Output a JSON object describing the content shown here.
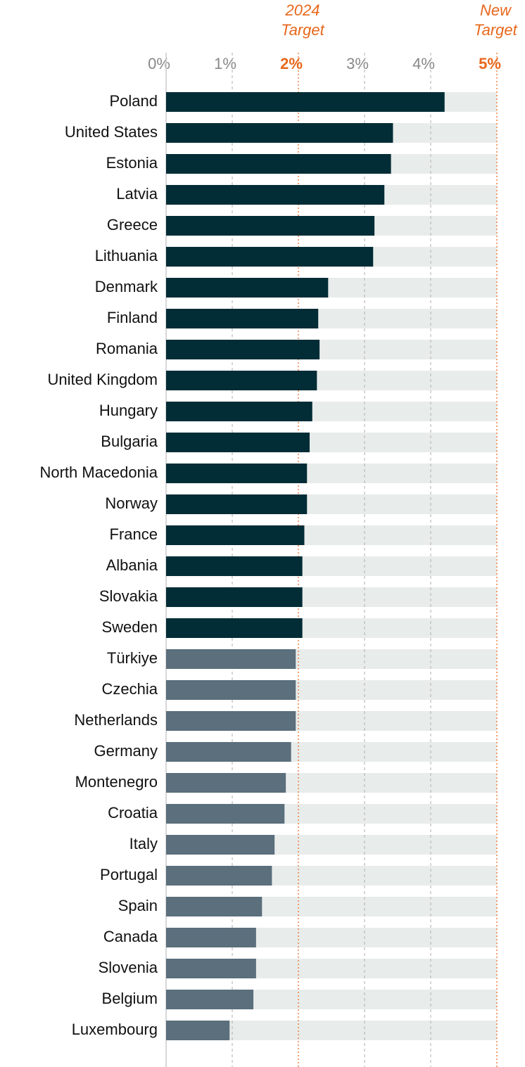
{
  "chart_data": {
    "type": "bar",
    "orientation": "horizontal",
    "categories": [
      "Poland",
      "United States",
      "Estonia",
      "Latvia",
      "Greece",
      "Lithuania",
      "Denmark",
      "Finland",
      "Romania",
      "United Kingdom",
      "Hungary",
      "Bulgaria",
      "North Macedonia",
      "Norway",
      "France",
      "Albania",
      "Slovakia",
      "Sweden",
      "Türkiye",
      "Czechia",
      "Netherlands",
      "Germany",
      "Montenegro",
      "Croatia",
      "Italy",
      "Portugal",
      "Spain",
      "Canada",
      "Slovenia",
      "Belgium",
      "Luxembourg"
    ],
    "values": [
      4.21,
      3.43,
      3.4,
      3.3,
      3.15,
      3.13,
      2.45,
      2.3,
      2.32,
      2.28,
      2.21,
      2.17,
      2.13,
      2.13,
      2.09,
      2.06,
      2.06,
      2.06,
      1.96,
      1.96,
      1.96,
      1.89,
      1.81,
      1.79,
      1.64,
      1.6,
      1.45,
      1.36,
      1.36,
      1.32,
      0.96
    ],
    "colors": [
      "#022d36",
      "#022d36",
      "#022d36",
      "#022d36",
      "#022d36",
      "#022d36",
      "#022d36",
      "#022d36",
      "#022d36",
      "#022d36",
      "#022d36",
      "#022d36",
      "#022d36",
      "#022d36",
      "#022d36",
      "#022d36",
      "#022d36",
      "#022d36",
      "#5b6f7c",
      "#5b6f7c",
      "#5b6f7c",
      "#5b6f7c",
      "#5b6f7c",
      "#5b6f7c",
      "#5b6f7c",
      "#5b6f7c",
      "#5b6f7c",
      "#5b6f7c",
      "#5b6f7c",
      "#5b6f7c",
      "#5b6f7c"
    ],
    "track_color": "#e8eceb",
    "xlim": [
      0,
      5
    ],
    "xticks": [
      {
        "value": 0,
        "label": "0%"
      },
      {
        "value": 1,
        "label": "1%"
      },
      {
        "value": 2,
        "label": "2%"
      },
      {
        "value": 3,
        "label": "3%"
      },
      {
        "value": 4,
        "label": "4%"
      },
      {
        "value": 5,
        "label": "5%"
      }
    ],
    "grid": true,
    "annotations": [
      {
        "x": 2,
        "text": [
          "2024",
          "Target"
        ]
      },
      {
        "x": 5,
        "text": [
          "New",
          "Target"
        ]
      }
    ]
  }
}
